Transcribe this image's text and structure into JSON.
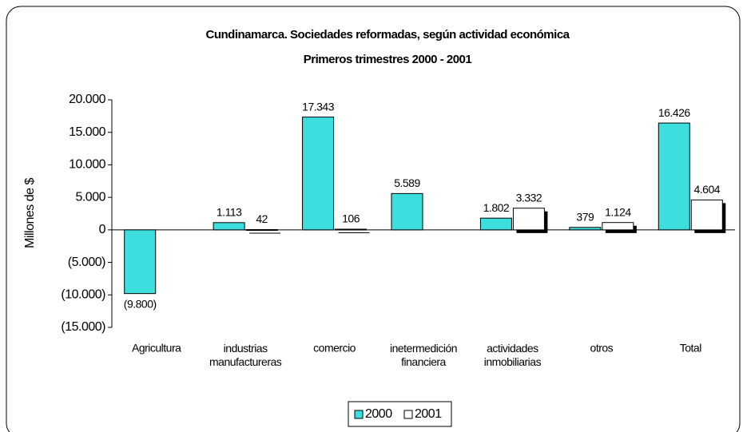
{
  "chart_data": {
    "type": "bar",
    "title": "Cundinamarca.  Sociedades reformadas, según actividad económica",
    "subtitle": "Primeros trimestres  2000 - 2001",
    "y_label": "Millones de $",
    "categories": [
      "Agricultura",
      "industrias\nmanufactureras",
      "comercio",
      "inetermedición\nfinanciera",
      "actividades\ninmobiliarias",
      "otros",
      "Total"
    ],
    "series": [
      {
        "name": "2000",
        "color": "#3cdede",
        "values": [
          -9800,
          1113,
          17343,
          5589,
          1802,
          379,
          16426
        ],
        "value_labels": [
          "(9.800)",
          "1.113",
          "17.343",
          "5.589",
          "1.802",
          "379",
          "16.426"
        ]
      },
      {
        "name": "2001",
        "color": "#ffffff",
        "values": [
          null,
          42,
          106,
          null,
          3332,
          1124,
          4604
        ],
        "value_labels": [
          null,
          "42",
          "106",
          null,
          "3.332",
          "1.124",
          "4.604"
        ]
      }
    ],
    "ylim": [
      -15000,
      20000
    ],
    "yticks": [
      {
        "value": -15000,
        "label": "(15.000)"
      },
      {
        "value": -10000,
        "label": "(10.000)"
      },
      {
        "value": -5000,
        "label": "(5.000)"
      },
      0,
      {
        "value": 5000,
        "label": "5.000"
      },
      {
        "value": 10000,
        "label": "10.000"
      },
      {
        "value": 15000,
        "label": "15.000"
      },
      {
        "value": 20000,
        "label": "20.000"
      }
    ],
    "negative_label_color": "#ff0000",
    "grid": false,
    "legend": "bottom"
  }
}
